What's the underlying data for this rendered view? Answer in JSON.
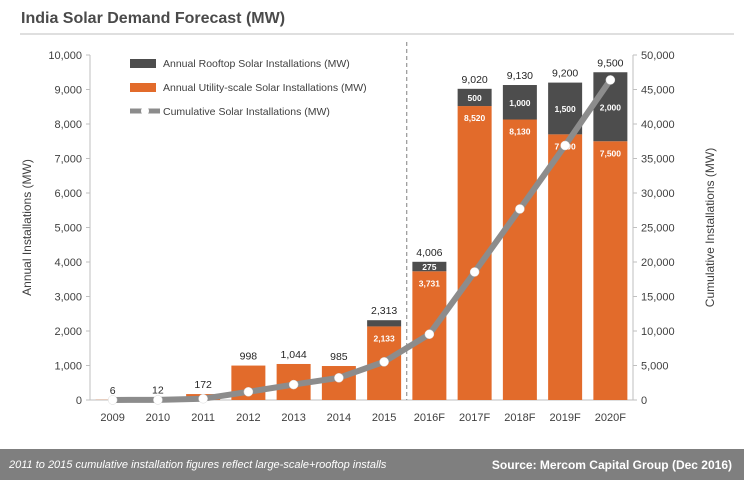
{
  "chart_data": {
    "type": "bar",
    "title": "India Solar Demand Forecast (MW)",
    "categories": [
      "2009",
      "2010",
      "2011",
      "2012",
      "2013",
      "2014",
      "2015",
      "2016F",
      "2017F",
      "2018F",
      "2019F",
      "2020F"
    ],
    "series": [
      {
        "name": "Annual Utility-scale Solar Installations (MW)",
        "color": "#e26b2b",
        "values": [
          6,
          12,
          172,
          998,
          1044,
          985,
          2133,
          3731,
          8520,
          8130,
          7700,
          7500
        ]
      },
      {
        "name": "Annual Rooftop Solar Installations (MW)",
        "color": "#4d4d4d",
        "values": [
          0,
          0,
          0,
          0,
          0,
          0,
          180,
          275,
          500,
          1000,
          1500,
          2000
        ]
      },
      {
        "name": "Cumulative Solar Installations (MW)",
        "color": "#8c8c8c",
        "axis": "right",
        "type": "line",
        "values": [
          6,
          18,
          190,
          1188,
          2232,
          3217,
          5530,
          9536,
          18556,
          27686,
          36886,
          46386
        ]
      }
    ],
    "totals": [
      "6",
      "12",
      "172",
      "998",
      "1,044",
      "985",
      "2,313",
      "4,006",
      "9,020",
      "9,130",
      "9,200",
      "9,500"
    ],
    "utility_labels": [
      "",
      "",
      "",
      "",
      "",
      "",
      "2,133",
      "3,731",
      "8,520",
      "8,130",
      "7,700",
      "7,500"
    ],
    "rooftop_labels": [
      "",
      "",
      "",
      "",
      "",
      "",
      "",
      "275",
      "500",
      "1,000",
      "1,500",
      "2,000"
    ],
    "ylabel": "Annual Installations (MW)",
    "ylabel_right": "Cumulative Installations (MW)",
    "ylim": [
      0,
      10000
    ],
    "ylim_right": [
      0,
      50000
    ],
    "yticks": [
      "0",
      "1,000",
      "2,000",
      "3,000",
      "4,000",
      "5,000",
      "6,000",
      "7,000",
      "8,000",
      "9,000",
      "10,000"
    ],
    "yticks_right": [
      "0",
      "5,000",
      "10,000",
      "15,000",
      "20,000",
      "25,000",
      "30,000",
      "35,000",
      "40,000",
      "45,000",
      "50,000"
    ],
    "forecast_divider_after": "2015",
    "legend": [
      "Annual Rooftop Solar Installations (MW)",
      "Annual Utility-scale Solar Installations (MW)",
      "Cumulative Solar Installations (MW)"
    ],
    "legend_position": "top-left"
  },
  "footer": {
    "note": "2011 to 2015 cumulative installation figures reflect large-scale+rooftop installs",
    "source": "Source: Mercom Capital Group (Dec 2016)"
  }
}
